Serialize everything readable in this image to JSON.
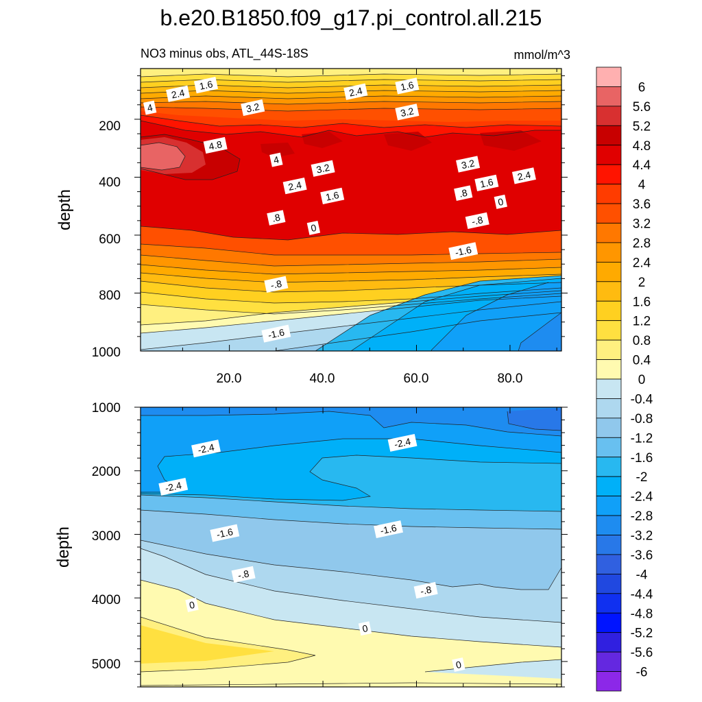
{
  "chart_data": [
    {
      "type": "contour",
      "panel": "upper",
      "title": "b.e20.B1850.f09_g17.pi_control.all.215",
      "subtitle_left": "NO3 minus obs, ATL_44S-18S",
      "subtitle_right": "mmol/m^3",
      "xlabel": "",
      "ylabel": "depth",
      "xlim": [
        1,
        91
      ],
      "ylim": [
        1000,
        25
      ],
      "xticks": [
        "20.0",
        "40.0",
        "60.0",
        "80.0"
      ],
      "yticks": [
        "200",
        "400",
        "600",
        "800",
        "1000"
      ],
      "contour_labels": [
        {
          "text": "2.4",
          "x": 9,
          "y": 112
        },
        {
          "text": "1.6",
          "x": 15,
          "y": 82
        },
        {
          "text": "2.4",
          "x": 47,
          "y": 105
        },
        {
          "text": "1.6",
          "x": 58,
          "y": 85
        },
        {
          "text": "4",
          "x": 3,
          "y": 160
        },
        {
          "text": "3.2",
          "x": 25,
          "y": 160
        },
        {
          "text": "3.2",
          "x": 58,
          "y": 175
        },
        {
          "text": "4.8",
          "x": 17,
          "y": 290
        },
        {
          "text": "4",
          "x": 30,
          "y": 340
        },
        {
          "text": "3.2",
          "x": 40,
          "y": 370
        },
        {
          "text": "3.2",
          "x": 71,
          "y": 355
        },
        {
          "text": "2.4",
          "x": 83,
          "y": 395
        },
        {
          "text": "1.6",
          "x": 75,
          "y": 420
        },
        {
          "text": ".8",
          "x": 70,
          "y": 455
        },
        {
          "text": "0",
          "x": 78,
          "y": 485
        },
        {
          "text": "2.4",
          "x": 34,
          "y": 430
        },
        {
          "text": "1.6",
          "x": 42,
          "y": 465
        },
        {
          "text": ".8",
          "x": 30,
          "y": 540
        },
        {
          "text": "0",
          "x": 38,
          "y": 575
        },
        {
          "text": "-.8",
          "x": 73,
          "y": 550
        },
        {
          "text": "-1.6",
          "x": 70,
          "y": 655
        },
        {
          "text": "-.8",
          "x": 30,
          "y": 770
        },
        {
          "text": "-1.6",
          "x": 30,
          "y": 940
        }
      ]
    },
    {
      "type": "contour",
      "panel": "lower",
      "xlabel": "",
      "ylabel": "depth",
      "xlim": [
        1,
        91
      ],
      "ylim": [
        5400,
        1000
      ],
      "yticks": [
        "1000",
        "2000",
        "3000",
        "4000",
        "5000"
      ],
      "contour_labels": [
        {
          "text": "-2.4",
          "x": 15,
          "y": 1650
        },
        {
          "text": "-2.4",
          "x": 57,
          "y": 1560
        },
        {
          "text": "-2.4",
          "x": 8,
          "y": 2250
        },
        {
          "text": "-1.6",
          "x": 19,
          "y": 2980
        },
        {
          "text": "-1.6",
          "x": 54,
          "y": 2920
        },
        {
          "text": "-.8",
          "x": 23,
          "y": 3630
        },
        {
          "text": "-.8",
          "x": 62,
          "y": 3880
        },
        {
          "text": "0",
          "x": 12,
          "y": 4110
        },
        {
          "text": "0",
          "x": 49,
          "y": 4480
        },
        {
          "text": "0",
          "x": 69,
          "y": 5050
        }
      ]
    }
  ],
  "colorbar": {
    "labels": [
      "6",
      "5.6",
      "5.2",
      "4.8",
      "4.4",
      "4",
      "3.6",
      "3.2",
      "2.8",
      "2.4",
      "2",
      "1.6",
      "1.2",
      "0.8",
      "0.4",
      "0",
      "-0.4",
      "-0.8",
      "-1.2",
      "-1.6",
      "-2",
      "-2.4",
      "-2.8",
      "-3.2",
      "-3.6",
      "-4",
      "-4.4",
      "-4.8",
      "-5.2",
      "-5.6",
      "-6"
    ],
    "colors": [
      "#ffb0b0",
      "#e86464",
      "#d83030",
      "#c80000",
      "#e00000",
      "#ff1400",
      "#ff3c00",
      "#ff5000",
      "#ff7800",
      "#ff9600",
      "#ffaa00",
      "#ffbb10",
      "#ffd020",
      "#ffe040",
      "#fff080",
      "#fffab0",
      "#c8e6f2",
      "#aed8ef",
      "#90c8ec",
      "#68c0f0",
      "#28b8f0",
      "#00b0f8",
      "#10a0f8",
      "#1e8cf0",
      "#2878e8",
      "#3060e0",
      "#2048e0",
      "#1030f0",
      "#0014ff",
      "#3020e0",
      "#6428e0",
      "#8c28e8"
    ]
  }
}
